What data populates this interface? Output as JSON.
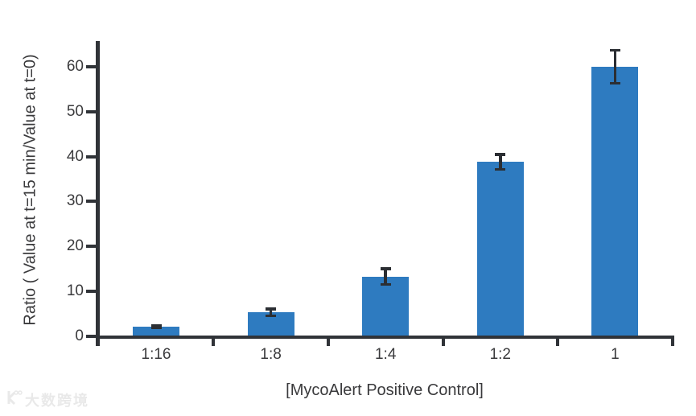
{
  "chart_data": {
    "type": "bar",
    "categories": [
      "1:16",
      "1:8",
      "1:4",
      "1:2",
      "1"
    ],
    "values": [
      2.2,
      5.3,
      13.3,
      38.8,
      60.0
    ],
    "error_bars": [
      0.3,
      0.8,
      1.8,
      1.7,
      3.7
    ],
    "title": "",
    "xlabel": "[MycoAlert Positive Control]",
    "ylabel": "Ratio ( Value at t=15 min/Value at t=0)",
    "yticks": [
      0,
      10,
      20,
      30,
      40,
      50,
      60
    ],
    "ylim": [
      0,
      65
    ],
    "grid": false,
    "legend": null,
    "bar_color": "#2e7bc0",
    "axis_color": "#303338",
    "text_color": "#3a3a3c",
    "error_bar_color": "#2b2e33"
  },
  "watermark": {
    "text": "大数跨境",
    "icon": "camera-logo-icon",
    "color": "#e9e9e9"
  }
}
